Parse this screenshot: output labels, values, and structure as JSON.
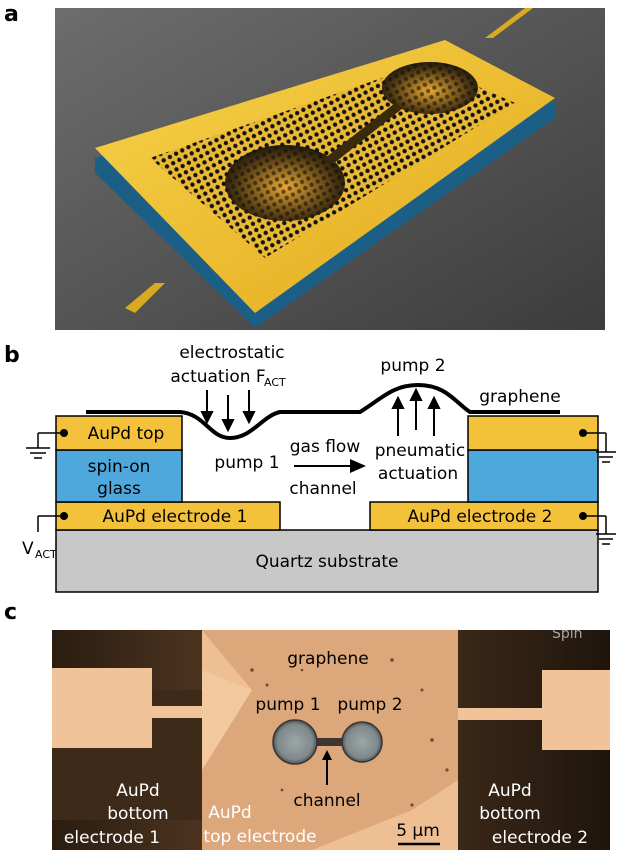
{
  "panels": {
    "a": {
      "letter": "a"
    },
    "b": {
      "letter": "b",
      "labels": {
        "electrostatic": "electrostatic",
        "actuation": "actuation F",
        "actuation_sub": "ACT",
        "pump2_top": "pump 2",
        "graphene": "graphene",
        "aupd_top": "AuPd top",
        "spin_on": "spin-on",
        "glass": "glass",
        "pump1": "pump 1",
        "gas_flow": "gas flow",
        "channel": "channel",
        "pneumatic": "pneumatic",
        "pneumatic_actuation": "actuation",
        "electrode1": "AuPd electrode 1",
        "electrode2": "AuPd electrode 2",
        "vact": "V",
        "vact_sub": "ACT",
        "substrate": "Quartz substrate"
      },
      "colors": {
        "gold": "#f3c13a",
        "glass": "#4fa8dc",
        "substrate": "#c8c8c8",
        "graphene": "#000000"
      }
    },
    "c": {
      "letter": "c",
      "labels": {
        "graphene": "graphene",
        "pump1": "pump 1",
        "pump2": "pump 2",
        "channel": "channel",
        "scale": "5 μm",
        "left_aupd": "AuPd",
        "left_bottom": "bottom",
        "left_electrode": "electrode 1",
        "top_aupd": "AuPd",
        "top_electrode": "top electrode",
        "right_aupd": "AuPd",
        "right_bottom": "bottom",
        "right_electrode": "electrode 2",
        "corner_text": "Spin"
      }
    }
  }
}
